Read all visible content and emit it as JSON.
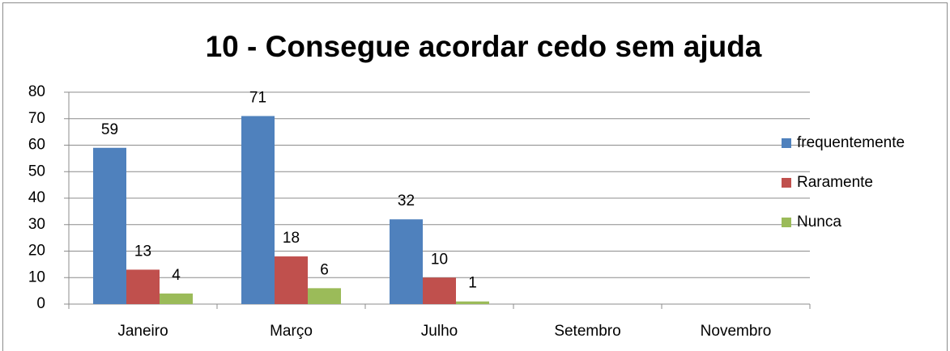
{
  "chart_data": {
    "type": "bar",
    "title": "10 - Consegue acordar cedo sem ajuda",
    "categories": [
      "Janeiro",
      "Março",
      "Julho",
      "Setembro",
      "Novembro"
    ],
    "series": [
      {
        "name": "frequentemente",
        "color": "#4f81bd",
        "values": [
          59,
          71,
          32,
          null,
          null
        ]
      },
      {
        "name": "Raramente",
        "color": "#c0504d",
        "values": [
          13,
          18,
          10,
          null,
          null
        ]
      },
      {
        "name": "Nunca",
        "color": "#9bbb59",
        "values": [
          4,
          6,
          1,
          null,
          null
        ]
      }
    ],
    "ylim": [
      0,
      80
    ],
    "yticks": [
      0,
      10,
      20,
      30,
      40,
      50,
      60,
      70,
      80
    ],
    "grid": true,
    "legend": "right"
  }
}
